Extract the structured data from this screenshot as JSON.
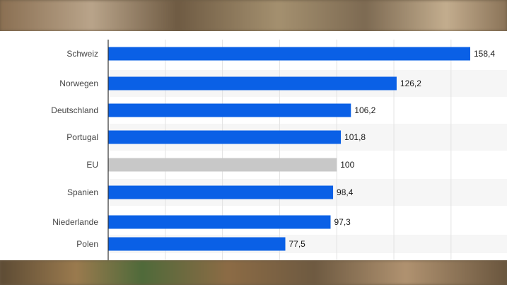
{
  "chart_data": {
    "type": "bar",
    "orientation": "horizontal",
    "categories": [
      "Schweiz",
      "Norwegen",
      "Deutschland",
      "Portugal",
      "EU",
      "Spanien",
      "Niederlande",
      "Polen"
    ],
    "values": [
      158.4,
      126.2,
      106.2,
      101.8,
      100,
      98.4,
      97.3,
      77.5
    ],
    "value_labels": [
      "158,4",
      "126,2",
      "106,2",
      "101,8",
      "100",
      "98,4",
      "97,3",
      "77,5"
    ],
    "highlight_category": "EU",
    "title": "",
    "xlabel": "",
    "ylabel": "",
    "xlim": [
      0,
      175
    ],
    "grid": true,
    "legend": "none",
    "colors": {
      "bar": "#0a60e6",
      "highlight_bar": "#c8c8c8",
      "axis": "#333333",
      "grid": "#e2e2e2",
      "label": "#444444",
      "value_label": "#1a1a1a"
    }
  }
}
